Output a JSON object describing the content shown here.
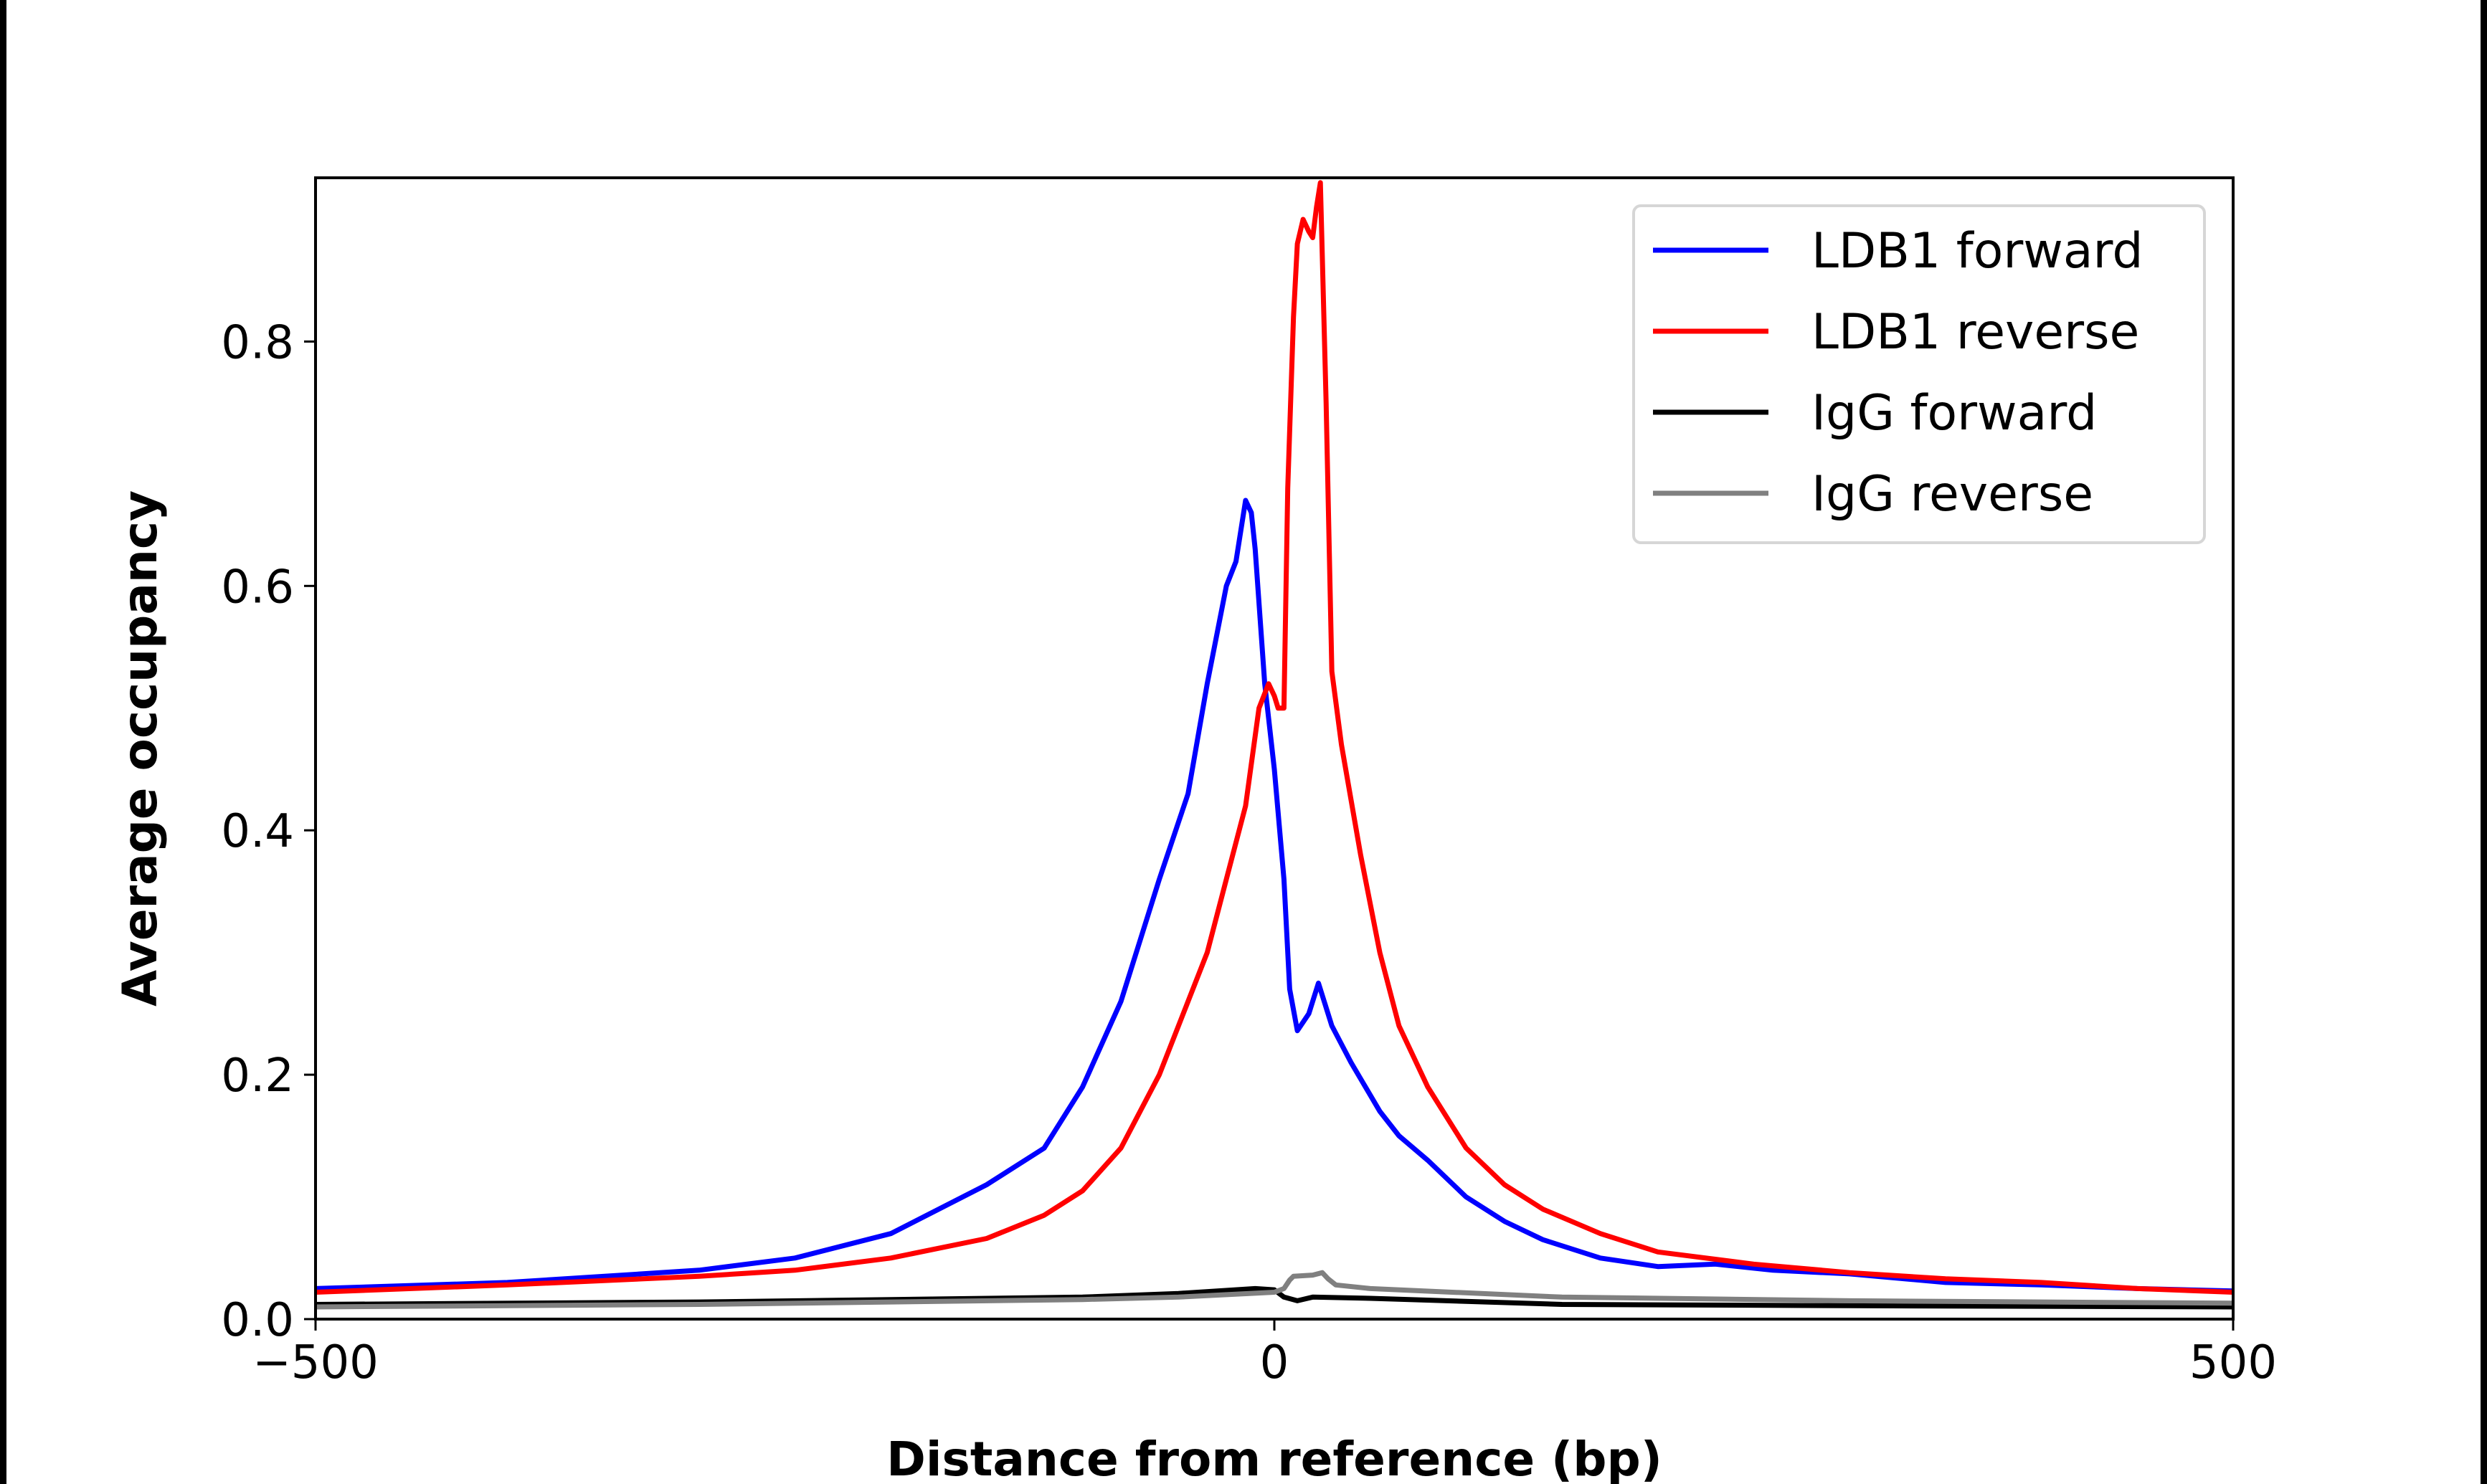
{
  "chart_data": {
    "type": "line",
    "title": "",
    "xlabel": "Distance from reference (bp)",
    "ylabel": "Average occupancy",
    "xlim": [
      -500,
      500
    ],
    "ylim": [
      0,
      0.934
    ],
    "xticks": [
      -500,
      0,
      500
    ],
    "xtick_labels": [
      "−500",
      "0",
      "500"
    ],
    "yticks": [
      0.0,
      0.2,
      0.4,
      0.6,
      0.8
    ],
    "ytick_labels": [
      "0.0",
      "0.2",
      "0.4",
      "0.6",
      "0.8"
    ],
    "grid": false,
    "legend_position": "top-right",
    "series": [
      {
        "name": "LDB1 forward",
        "color": "#0000ff",
        "x": [
          -500,
          -400,
          -300,
          -250,
          -200,
          -150,
          -120,
          -100,
          -80,
          -60,
          -45,
          -35,
          -25,
          -20,
          -15,
          -12,
          -10,
          -5,
          0,
          5,
          8,
          12,
          18,
          23,
          30,
          40,
          55,
          65,
          80,
          100,
          120,
          140,
          170,
          200,
          230,
          260,
          300,
          350,
          400,
          450,
          500
        ],
        "y": [
          0.025,
          0.03,
          0.04,
          0.05,
          0.07,
          0.11,
          0.14,
          0.19,
          0.26,
          0.36,
          0.43,
          0.52,
          0.6,
          0.62,
          0.67,
          0.66,
          0.63,
          0.52,
          0.45,
          0.36,
          0.27,
          0.236,
          0.25,
          0.275,
          0.24,
          0.21,
          0.17,
          0.15,
          0.13,
          0.1,
          0.08,
          0.065,
          0.05,
          0.043,
          0.045,
          0.04,
          0.037,
          0.03,
          0.028,
          0.025,
          0.023
        ]
      },
      {
        "name": "LDB1 reverse",
        "color": "#ff0000",
        "x": [
          -500,
          -400,
          -300,
          -250,
          -200,
          -150,
          -120,
          -100,
          -80,
          -60,
          -45,
          -35,
          -25,
          -15,
          -8,
          -3,
          0,
          2,
          5,
          7,
          10,
          12,
          15,
          18,
          20,
          22,
          24,
          27,
          30,
          35,
          45,
          55,
          65,
          80,
          100,
          120,
          140,
          170,
          200,
          250,
          300,
          350,
          400,
          450,
          500
        ],
        "y": [
          0.022,
          0.028,
          0.035,
          0.04,
          0.05,
          0.066,
          0.085,
          0.105,
          0.14,
          0.2,
          0.26,
          0.3,
          0.36,
          0.42,
          0.5,
          0.52,
          0.51,
          0.5,
          0.5,
          0.68,
          0.82,
          0.88,
          0.9,
          0.89,
          0.885,
          0.91,
          0.93,
          0.75,
          0.53,
          0.47,
          0.38,
          0.3,
          0.24,
          0.19,
          0.14,
          0.11,
          0.09,
          0.07,
          0.055,
          0.045,
          0.038,
          0.033,
          0.03,
          0.025,
          0.022
        ]
      },
      {
        "name": "IgG forward",
        "color": "#000000",
        "x": [
          -500,
          -300,
          -200,
          -100,
          -50,
          -10,
          0,
          5,
          12,
          20,
          50,
          150,
          300,
          500
        ],
        "y": [
          0.012,
          0.014,
          0.016,
          0.018,
          0.021,
          0.025,
          0.024,
          0.018,
          0.015,
          0.018,
          0.017,
          0.012,
          0.011,
          0.01
        ]
      },
      {
        "name": "IgG reverse",
        "color": "#808080",
        "x": [
          -500,
          -300,
          -200,
          -100,
          -50,
          0,
          5,
          8,
          10,
          20,
          25,
          28,
          32,
          50,
          150,
          300,
          500
        ],
        "y": [
          0.01,
          0.012,
          0.014,
          0.016,
          0.018,
          0.022,
          0.025,
          0.032,
          0.035,
          0.036,
          0.038,
          0.033,
          0.028,
          0.025,
          0.018,
          0.015,
          0.013
        ]
      }
    ]
  }
}
